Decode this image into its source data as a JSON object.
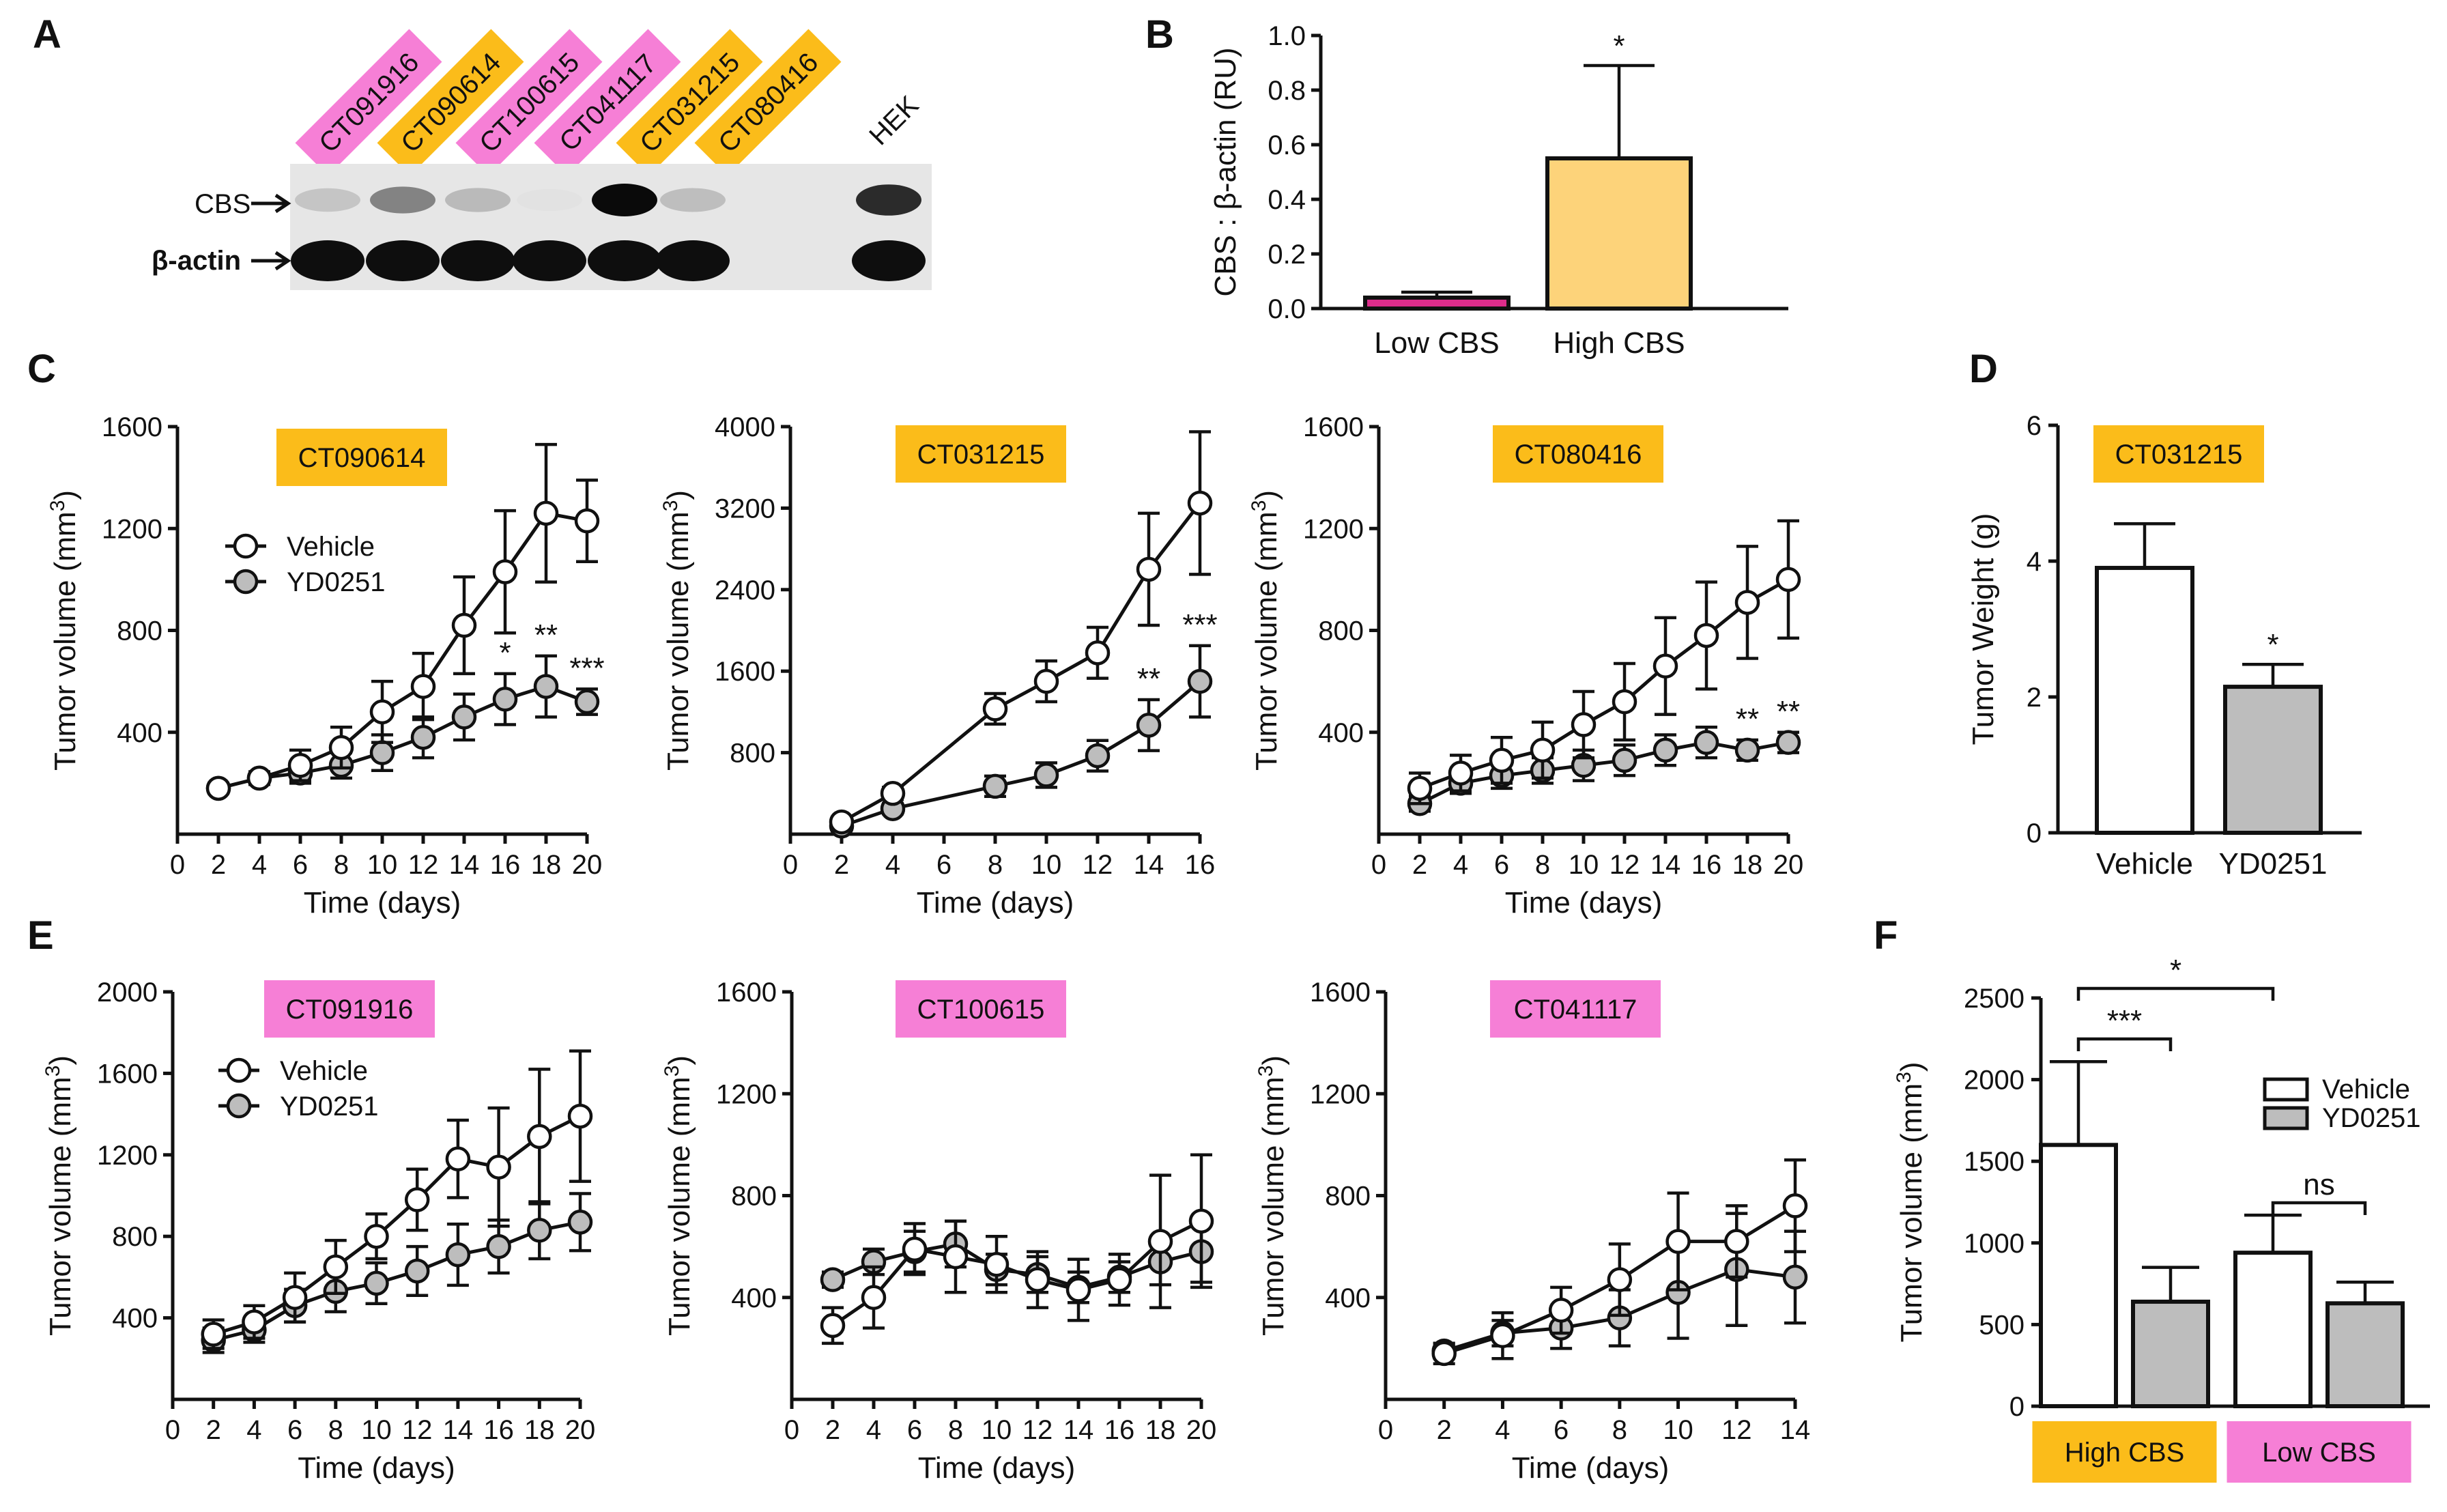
{
  "colors": {
    "orange": "#fbbc1a",
    "pink": "#f67fd6",
    "gray": "#bdbdbd",
    "white": "#ffffff",
    "ink": "#111111",
    "low_bar": "#dd2d8b",
    "high_bar": "#fdd37a"
  },
  "panel_letters": {
    "A": "A",
    "B": "B",
    "C": "C",
    "D": "D",
    "E": "E",
    "F": "F"
  },
  "blot": {
    "samples": [
      {
        "label": "CT091916",
        "color": "pink"
      },
      {
        "label": "CT090614",
        "color": "orange"
      },
      {
        "label": "CT100615",
        "color": "pink"
      },
      {
        "label": "CT041117",
        "color": "pink"
      },
      {
        "label": "CT031215",
        "color": "orange"
      },
      {
        "label": "CT080416",
        "color": "orange"
      }
    ],
    "control_label": "HEK",
    "row_labels": {
      "cbs": "CBS",
      "actin": "β-actin"
    },
    "cbs_band_intensity": [
      0.15,
      0.45,
      0.2,
      0.02,
      1.0,
      0.18,
      0.85
    ],
    "actin_band_intensity": [
      1,
      1,
      1,
      1,
      1,
      1,
      1
    ]
  },
  "chart_data": [
    {
      "id": "B",
      "type": "bar",
      "title": "",
      "categories": [
        "Low CBS",
        "High CBS"
      ],
      "values": [
        0.04,
        0.55
      ],
      "errors": [
        0.02,
        0.34
      ],
      "bar_colors": [
        "low_bar",
        "high_bar"
      ],
      "ylabel": "CBS : β-actin (RU)",
      "ylim": [
        0,
        1.0
      ],
      "yticks": [
        0.0,
        0.2,
        0.4,
        0.6,
        0.8,
        1.0
      ],
      "ytick_labels": [
        "0.0",
        "0.2",
        "0.4",
        "0.6",
        "0.8",
        "1.0"
      ],
      "annotations": [
        {
          "category": "High CBS",
          "text": "*"
        }
      ]
    },
    {
      "id": "C1",
      "type": "line",
      "tag": "CT090614",
      "tag_color": "orange",
      "xlabel": "Time (days)",
      "ylabel": "Tumor volume (mm³)",
      "xlim": [
        0,
        20
      ],
      "ylim": [
        0,
        1600
      ],
      "xticks": [
        0,
        2,
        4,
        6,
        8,
        10,
        12,
        14,
        16,
        18,
        20
      ],
      "yticks": [
        400,
        800,
        1200,
        1600
      ],
      "legend": [
        "Vehicle",
        "YD0251"
      ],
      "series": [
        {
          "name": "Vehicle",
          "x": [
            2,
            4,
            6,
            8,
            10,
            12,
            14,
            16,
            18,
            20
          ],
          "y": [
            180,
            220,
            270,
            340,
            480,
            580,
            820,
            1030,
            1260,
            1230
          ],
          "err": [
            20,
            25,
            60,
            80,
            120,
            130,
            190,
            240,
            270,
            160
          ]
        },
        {
          "name": "YD0251",
          "x": [
            2,
            4,
            6,
            8,
            10,
            12,
            14,
            16,
            18,
            20
          ],
          "y": [
            180,
            220,
            240,
            270,
            320,
            380,
            460,
            530,
            580,
            520
          ],
          "err": [
            20,
            25,
            40,
            50,
            70,
            80,
            90,
            100,
            120,
            50
          ]
        }
      ],
      "sig": [
        {
          "x": 16,
          "text": "*"
        },
        {
          "x": 18,
          "text": "**"
        },
        {
          "x": 20,
          "text": "***"
        }
      ]
    },
    {
      "id": "C2",
      "type": "line",
      "tag": "CT031215",
      "tag_color": "orange",
      "xlabel": "Time (days)",
      "ylabel": "Tumor volume (mm³)",
      "xlim": [
        0,
        16
      ],
      "ylim": [
        0,
        4000
      ],
      "xticks": [
        0,
        2,
        4,
        6,
        8,
        10,
        12,
        14,
        16
      ],
      "yticks": [
        800,
        1600,
        2400,
        3200,
        4000
      ],
      "series": [
        {
          "name": "Vehicle",
          "x": [
            2,
            4,
            8,
            10,
            12,
            14,
            16
          ],
          "y": [
            120,
            400,
            1230,
            1500,
            1780,
            2600,
            3250
          ],
          "err": [
            40,
            60,
            150,
            200,
            250,
            550,
            700
          ]
        },
        {
          "name": "YD0251",
          "x": [
            2,
            4,
            8,
            10,
            12,
            14,
            16
          ],
          "y": [
            80,
            250,
            470,
            580,
            770,
            1070,
            1500
          ],
          "err": [
            30,
            50,
            100,
            120,
            150,
            250,
            350
          ]
        }
      ],
      "sig": [
        {
          "x": 14,
          "text": "**"
        },
        {
          "x": 16,
          "text": "***"
        }
      ]
    },
    {
      "id": "C3",
      "type": "line",
      "tag": "CT080416",
      "tag_color": "orange",
      "xlabel": "Time (days)",
      "ylabel": "Tumor volume (mm³)",
      "xlim": [
        0,
        20
      ],
      "ylim": [
        0,
        1600
      ],
      "xticks": [
        0,
        2,
        4,
        6,
        8,
        10,
        12,
        14,
        16,
        18,
        20
      ],
      "yticks": [
        400,
        800,
        1200,
        1600
      ],
      "series": [
        {
          "name": "Vehicle",
          "x": [
            2,
            4,
            6,
            8,
            10,
            12,
            14,
            16,
            18,
            20
          ],
          "y": [
            180,
            240,
            290,
            330,
            430,
            520,
            660,
            780,
            910,
            1000
          ],
          "err": [
            60,
            70,
            90,
            110,
            130,
            150,
            190,
            210,
            220,
            230
          ]
        },
        {
          "name": "YD0251",
          "x": [
            2,
            4,
            6,
            8,
            10,
            12,
            14,
            16,
            18,
            20
          ],
          "y": [
            120,
            200,
            230,
            250,
            270,
            290,
            330,
            360,
            330,
            360
          ],
          "err": [
            30,
            40,
            50,
            50,
            60,
            60,
            60,
            60,
            40,
            40
          ]
        }
      ],
      "sig": [
        {
          "x": 18,
          "text": "**"
        },
        {
          "x": 20,
          "text": "**"
        }
      ]
    },
    {
      "id": "D",
      "type": "bar",
      "tag": "CT031215",
      "tag_color": "orange",
      "categories": [
        "Vehicle",
        "YD0251"
      ],
      "values": [
        3.9,
        2.15
      ],
      "errors": [
        0.65,
        0.33
      ],
      "bar_colors": [
        "white",
        "gray"
      ],
      "ylabel": "Tumor Weight (g)",
      "ylim": [
        0,
        6
      ],
      "yticks": [
        0,
        2,
        4,
        6
      ],
      "annotations": [
        {
          "category": "YD0251",
          "text": "*"
        }
      ]
    },
    {
      "id": "E1",
      "type": "line",
      "tag": "CT091916",
      "tag_color": "pink",
      "xlabel": "Time (days)",
      "ylabel": "Tumor volume (mm³)",
      "xlim": [
        0,
        20
      ],
      "ylim": [
        0,
        2000
      ],
      "xticks": [
        0,
        2,
        4,
        6,
        8,
        10,
        12,
        14,
        16,
        18,
        20
      ],
      "yticks": [
        400,
        800,
        1200,
        1600,
        2000
      ],
      "legend": [
        "Vehicle",
        "YD0251"
      ],
      "series": [
        {
          "name": "Vehicle",
          "x": [
            2,
            4,
            6,
            8,
            10,
            12,
            14,
            16,
            18,
            20
          ],
          "y": [
            320,
            380,
            500,
            650,
            800,
            980,
            1180,
            1140,
            1290,
            1390
          ],
          "err": [
            70,
            80,
            120,
            130,
            110,
            150,
            190,
            290,
            330,
            320
          ]
        },
        {
          "name": "YD0251",
          "x": [
            2,
            4,
            6,
            8,
            10,
            12,
            14,
            16,
            18,
            20
          ],
          "y": [
            290,
            340,
            460,
            530,
            570,
            630,
            710,
            750,
            830,
            870
          ],
          "err": [
            60,
            60,
            80,
            100,
            100,
            120,
            150,
            130,
            140,
            140
          ]
        }
      ]
    },
    {
      "id": "E2",
      "type": "line",
      "tag": "CT100615",
      "tag_color": "pink",
      "xlabel": "Time (days)",
      "ylabel": "Tumor volume (mm³)",
      "xlim": [
        0,
        20
      ],
      "ylim": [
        0,
        1600
      ],
      "xticks": [
        0,
        2,
        4,
        6,
        8,
        10,
        12,
        14,
        16,
        18,
        20
      ],
      "yticks": [
        400,
        800,
        1200,
        1600
      ],
      "series": [
        {
          "name": "Vehicle",
          "x": [
            2,
            4,
            6,
            8,
            10,
            12,
            14,
            16,
            18,
            20
          ],
          "y": [
            290,
            400,
            590,
            560,
            530,
            470,
            430,
            470,
            620,
            700
          ],
          "err": [
            70,
            120,
            100,
            140,
            110,
            110,
            120,
            100,
            260,
            260
          ]
        },
        {
          "name": "YD0251",
          "x": [
            2,
            4,
            6,
            8,
            10,
            12,
            14,
            16,
            18,
            20
          ],
          "y": [
            470,
            540,
            580,
            610,
            510,
            490,
            440,
            480,
            540,
            580
          ],
          "err": [
            30,
            50,
            80,
            90,
            60,
            70,
            60,
            60,
            90,
            120
          ]
        }
      ]
    },
    {
      "id": "E3",
      "type": "line",
      "tag": "CT041117",
      "tag_color": "pink",
      "xlabel": "Time (days)",
      "ylabel": "Tumor volume (mm³)",
      "xlim": [
        0,
        14
      ],
      "ylim": [
        0,
        1600
      ],
      "xticks": [
        0,
        2,
        4,
        6,
        8,
        10,
        12,
        14
      ],
      "yticks": [
        400,
        800,
        1200,
        1600
      ],
      "series": [
        {
          "name": "Vehicle",
          "x": [
            2,
            4,
            6,
            8,
            10,
            12,
            14
          ],
          "y": [
            180,
            250,
            350,
            470,
            620,
            620,
            760
          ],
          "err": [
            40,
            90,
            90,
            140,
            190,
            140,
            180
          ]
        },
        {
          "name": "YD0251",
          "x": [
            2,
            4,
            6,
            8,
            10,
            12,
            14
          ],
          "y": [
            190,
            260,
            280,
            320,
            420,
            510,
            480
          ],
          "err": [
            30,
            50,
            80,
            110,
            180,
            220,
            180
          ]
        }
      ]
    },
    {
      "id": "F",
      "type": "bar",
      "ylabel": "Tumor volume (mm³)",
      "ylim": [
        0,
        2500
      ],
      "yticks": [
        0,
        500,
        1000,
        1500,
        2000,
        2500
      ],
      "groups": [
        {
          "label": "High CBS",
          "color": "orange"
        },
        {
          "label": "Low CBS",
          "color": "pink"
        }
      ],
      "series": [
        {
          "name": "Vehicle",
          "values": [
            1600,
            940
          ],
          "errors": [
            510,
            230
          ],
          "color": "white"
        },
        {
          "name": "YD0251",
          "values": [
            640,
            630
          ],
          "errors": [
            210,
            130
          ],
          "color": "gray"
        }
      ],
      "brackets": [
        {
          "from": [
            0,
            0
          ],
          "to": [
            1,
            0
          ],
          "text": "*"
        },
        {
          "from": [
            0,
            0
          ],
          "to": [
            0,
            1
          ],
          "text": "***"
        },
        {
          "from": [
            1,
            0
          ],
          "to": [
            1,
            1
          ],
          "text": "ns"
        }
      ]
    }
  ]
}
